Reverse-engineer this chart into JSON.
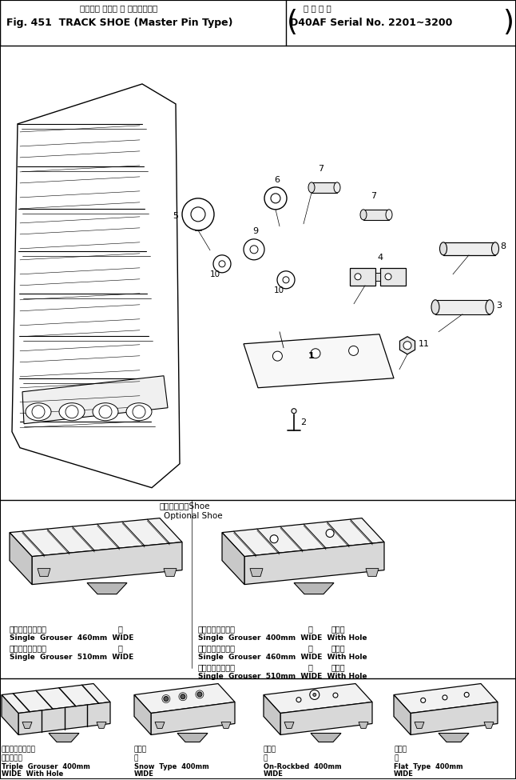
{
  "title_jp": "トラック シュー 　 マスタピン型",
  "title_en": "Fig. 451  TRACK SHOE (Master Pin Type)",
  "serial_jp": "適 用 号 機",
  "serial_en": "D40AF Serial No. 2201∼3200",
  "opt_jp": "オプショナルShoe",
  "opt_en": "Optional Shoe",
  "lbl_left": [
    "シングルグローサ",
    "幅",
    "Single  Grouser  460mm  WIDE",
    "シングルグローサ",
    "幅",
    "Single  Grouser  510mm  WIDE"
  ],
  "lbl_right": [
    "シングルグローサ",
    "幅",
    "穴あき",
    "Single  Grouser  400mm  WIDE  With Hole",
    "シングルグローサ",
    "幅",
    "穴あき",
    "Single  Grouser  460mm  WIDE  With Hole",
    "シングルグローサ",
    "幅",
    "穴あき",
    "Single  Grouser  510mm  WIDE  With Hole"
  ],
  "lbl_bot_jp": [
    "トリプルグローサ",
    "雪上用",
    "山地用",
    "平坦用"
  ],
  "lbl_bot_jp2": [
    "幅　穴あき",
    "幅",
    "幅",
    "幅"
  ],
  "lbl_bot_en1": [
    "Triple  Grouser  400mm",
    "Snow  Type  400mm",
    "On-Rockbed  400mm",
    "Flat  Type  400mm"
  ],
  "lbl_bot_en2": [
    "WIDE  With Hole",
    "WIDE",
    "WIDE",
    "WIDE"
  ],
  "bg": "#ffffff",
  "lc": "#000000"
}
